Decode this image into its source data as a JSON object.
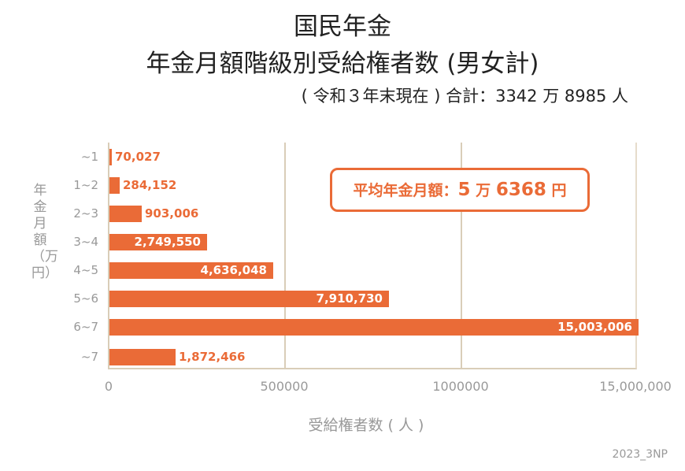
{
  "header": {
    "title_line1": "国民年金",
    "title_line2": "年金月額階級別受給権者数 (男女計)",
    "subtitle": "( 令和３年末現在 ) 合計：3342 万 8985 人"
  },
  "annotation": {
    "label": "平均年金月額：",
    "man": "5",
    "man_unit": "万",
    "yen": "6368",
    "yen_unit": "円"
  },
  "axes": {
    "ylabel": "年金月額（万円）",
    "xlabel": "受給権者数 ( 人 )",
    "xticks": [
      "0",
      "500000",
      "1000000",
      "15,000,000"
    ]
  },
  "credit": "2023_3NP",
  "colors": {
    "bar": "#ea6b37",
    "axis": "#d9cdb8",
    "muted_text": "#999999"
  },
  "chart_data": {
    "type": "bar",
    "orientation": "horizontal",
    "title": "国民年金 年金月額階級別受給権者数 (男女計)",
    "subtitle": "( 令和３年末現在 ) 合計：3342 万 8985 人",
    "xlabel": "受給権者数 ( 人 )",
    "ylabel": "年金月額（万円）",
    "categories": [
      "~1",
      "1~2",
      "2~3",
      "3~4",
      "4~5",
      "5~6",
      "6~7",
      "~7"
    ],
    "values": [
      70027,
      284152,
      903006,
      2749550,
      4636048,
      7910730,
      15003006,
      1872466
    ],
    "value_labels": [
      "70,027",
      "284,152",
      "903,006",
      "2,749,550",
      "4,636,048",
      "7,910,730",
      "15,003,006",
      "1,872,466"
    ],
    "xticks": [
      "0",
      "500000",
      "1000000",
      "15,000,000"
    ],
    "xlim": [
      0,
      15000000
    ],
    "grid": "vertical",
    "annotation": "平均年金月額：5 万 6368 円",
    "legend": null
  }
}
